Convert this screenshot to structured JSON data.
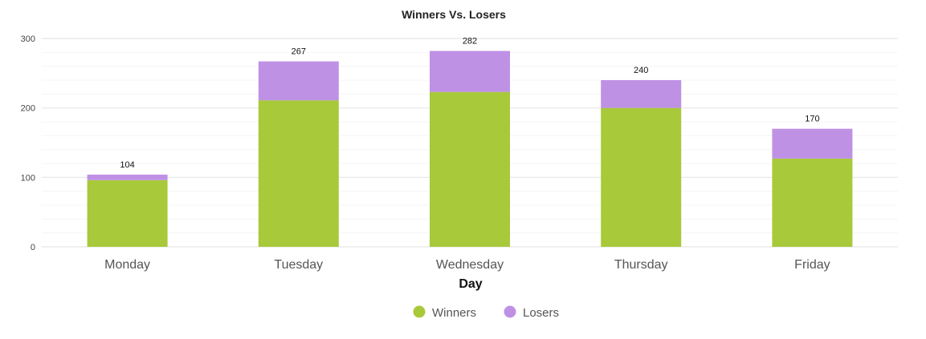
{
  "chart_data": {
    "type": "bar",
    "stacked": true,
    "title": "Winners Vs. Losers",
    "xlabel": "Day",
    "ylabel": "",
    "categories": [
      "Monday",
      "Tuesday",
      "Wednesday",
      "Thursday",
      "Friday"
    ],
    "series": [
      {
        "name": "Winners",
        "color": "#a8c93a",
        "values": [
          96,
          211,
          223,
          200,
          127
        ]
      },
      {
        "name": "Losers",
        "color": "#bf91e5",
        "values": [
          8,
          56,
          59,
          40,
          43
        ]
      }
    ],
    "totals": [
      104,
      267,
      282,
      240,
      170
    ],
    "ylim": [
      0,
      300
    ],
    "yticks": [
      0,
      100,
      200,
      300
    ],
    "grid": true,
    "legend": "bottom-center"
  }
}
